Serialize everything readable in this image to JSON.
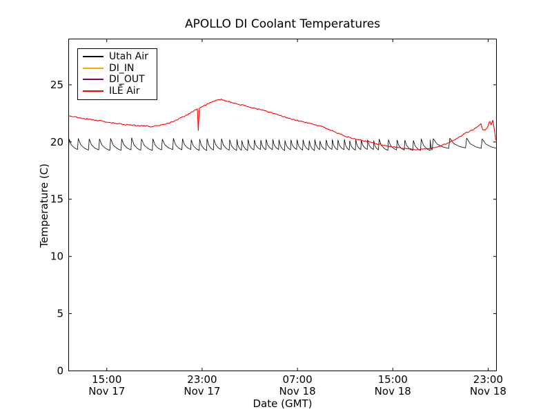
{
  "chart_data": {
    "type": "line",
    "title": "APOLLO DI Coolant Temperatures",
    "xlabel": "Date (GMT)",
    "ylabel": "Temperature (C)",
    "grid": false,
    "legend_position": "upper-left",
    "background_color": "#ffffff",
    "axis_color": "#000000",
    "ylim": [
      0,
      29
    ],
    "yticks": [
      0,
      5,
      10,
      15,
      20,
      25
    ],
    "x_unit": "hours since approx. 12:00 GMT Nov 17",
    "xlim_hours": [
      0,
      35.9
    ],
    "xticks": [
      {
        "t": 3.2,
        "time": "15:00",
        "date": "Nov 17"
      },
      {
        "t": 11.2,
        "time": "23:00",
        "date": "Nov 17"
      },
      {
        "t": 19.2,
        "time": "07:00",
        "date": "Nov 18"
      },
      {
        "t": 27.2,
        "time": "15:00",
        "date": "Nov 18"
      },
      {
        "t": 35.2,
        "time": "23:00",
        "date": "Nov 18"
      }
    ],
    "series": [
      {
        "name": "Utah Air",
        "color": "#000000",
        "linewidth": 0.8,
        "pattern": "sawtooth",
        "description": "rapid sawtooth oscillation between ~19.3 and ~20.3 C across the whole window",
        "sawtooth_segments": [
          {
            "t_start": 0,
            "t_end": 9.5,
            "period_h": 0.87,
            "peak": 20.3,
            "trough": 19.3
          },
          {
            "t_start": 9.5,
            "t_end": 14.5,
            "period_h": 0.65,
            "peak": 20.25,
            "trough": 19.3
          },
          {
            "t_start": 14.5,
            "t_end": 26.0,
            "period_h": 0.5,
            "peak": 20.15,
            "trough": 19.3
          },
          {
            "t_start": 26.0,
            "t_end": 30.5,
            "period_h": 0.72,
            "peak": 20.2,
            "trough": 19.3
          },
          {
            "t_start": 30.5,
            "t_end": 35.9,
            "period_h": 1.3,
            "peak": 20.3,
            "trough": 19.45
          }
        ]
      },
      {
        "name": "DI_IN",
        "color": "#ffa500",
        "linewidth": 1.0,
        "visible_in_plot": false,
        "points": []
      },
      {
        "name": "DI_OUT",
        "color": "#800080",
        "linewidth": 1.0,
        "visible_in_plot": false,
        "points": []
      },
      {
        "name": "ILĒ Air",
        "color": "#ff0000",
        "linewidth": 1.1,
        "noise": 0.055,
        "points": [
          [
            0,
            22.3
          ],
          [
            0.9,
            22.1
          ],
          [
            2,
            21.95
          ],
          [
            2.9,
            21.8
          ],
          [
            4,
            21.6
          ],
          [
            5,
            21.5
          ],
          [
            5.8,
            21.45
          ],
          [
            7,
            21.35
          ],
          [
            7.8,
            21.5
          ],
          [
            8.7,
            21.75
          ],
          [
            9.9,
            22.35
          ],
          [
            10.8,
            22.9
          ],
          [
            10.88,
            21.0
          ],
          [
            10.96,
            22.95
          ],
          [
            11.6,
            23.3
          ],
          [
            12.3,
            23.6
          ],
          [
            12.8,
            23.75
          ],
          [
            13.3,
            23.55
          ],
          [
            13.9,
            23.4
          ],
          [
            15,
            23.1
          ],
          [
            16.2,
            22.8
          ],
          [
            17.5,
            22.4
          ],
          [
            18.3,
            22.1
          ],
          [
            19.1,
            21.9
          ],
          [
            20.3,
            21.6
          ],
          [
            21.4,
            21.3
          ],
          [
            22.3,
            20.9
          ],
          [
            23.2,
            20.5
          ],
          [
            24,
            20.3
          ],
          [
            24.9,
            20.1
          ],
          [
            25.8,
            19.85
          ],
          [
            26.7,
            19.65
          ],
          [
            27.6,
            19.5
          ],
          [
            28.4,
            19.4
          ],
          [
            29.5,
            19.35
          ],
          [
            30.7,
            19.5
          ],
          [
            31.8,
            19.9
          ],
          [
            32.6,
            20.3
          ],
          [
            33.3,
            20.8
          ],
          [
            34.0,
            21.1
          ],
          [
            34.6,
            21.6
          ],
          [
            34.75,
            21.05
          ],
          [
            35.0,
            21.1
          ],
          [
            35.1,
            21.2
          ],
          [
            35.35,
            21.8
          ],
          [
            35.45,
            21.5
          ],
          [
            35.6,
            21.9
          ],
          [
            35.75,
            20.9
          ],
          [
            35.85,
            20.15
          ]
        ]
      }
    ]
  }
}
